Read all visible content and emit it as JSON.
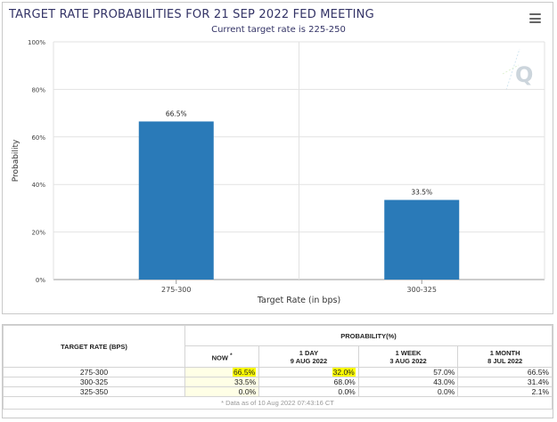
{
  "chart_data": {
    "type": "bar",
    "title": "TARGET RATE PROBABILITIES FOR 21 SEP 2022 FED MEETING",
    "subtitle": "Current target rate is 225-250",
    "xlabel": "Target Rate (in bps)",
    "ylabel": "Probability",
    "categories": [
      "275-300",
      "300-325"
    ],
    "values": [
      66.5,
      33.5
    ],
    "data_labels": [
      "66.5%",
      "33.5%"
    ],
    "ylim": [
      0,
      100
    ],
    "yticks": [
      0,
      20,
      40,
      60,
      80,
      100
    ],
    "ytick_labels": [
      "0%",
      "20%",
      "40%",
      "60%",
      "80%",
      "100%"
    ],
    "grid": true,
    "legend": "none",
    "bar_color": "#2a7ab8"
  },
  "table": {
    "rate_header": "TARGET RATE (BPS)",
    "group_header": "PROBABILITY(%)",
    "columns": [
      {
        "label": "NOW",
        "mark": "*",
        "date": ""
      },
      {
        "label": "1 DAY",
        "date": "9 AUG 2022"
      },
      {
        "label": "1 WEEK",
        "date": "3 AUG 2022"
      },
      {
        "label": "1 MONTH",
        "date": "8 JUL 2022"
      }
    ],
    "rows": [
      {
        "rate": "275-300",
        "values": [
          "66.5%",
          "32.0%",
          "57.0%",
          "66.5%"
        ]
      },
      {
        "rate": "300-325",
        "values": [
          "33.5%",
          "68.0%",
          "43.0%",
          "31.4%"
        ]
      },
      {
        "rate": "325-350",
        "values": [
          "0.0%",
          "0.0%",
          "0.0%",
          "2.1%"
        ]
      }
    ],
    "footnote": "* Data as of 10 Aug 2022 07:43:16 CT"
  },
  "colors": {
    "highlight": "#ffff00",
    "now_column": "#ffffe6",
    "title": "#333366"
  },
  "icons": {
    "menu": "hamburger-menu-icon",
    "watermark": "quikstrike-q-logo"
  }
}
